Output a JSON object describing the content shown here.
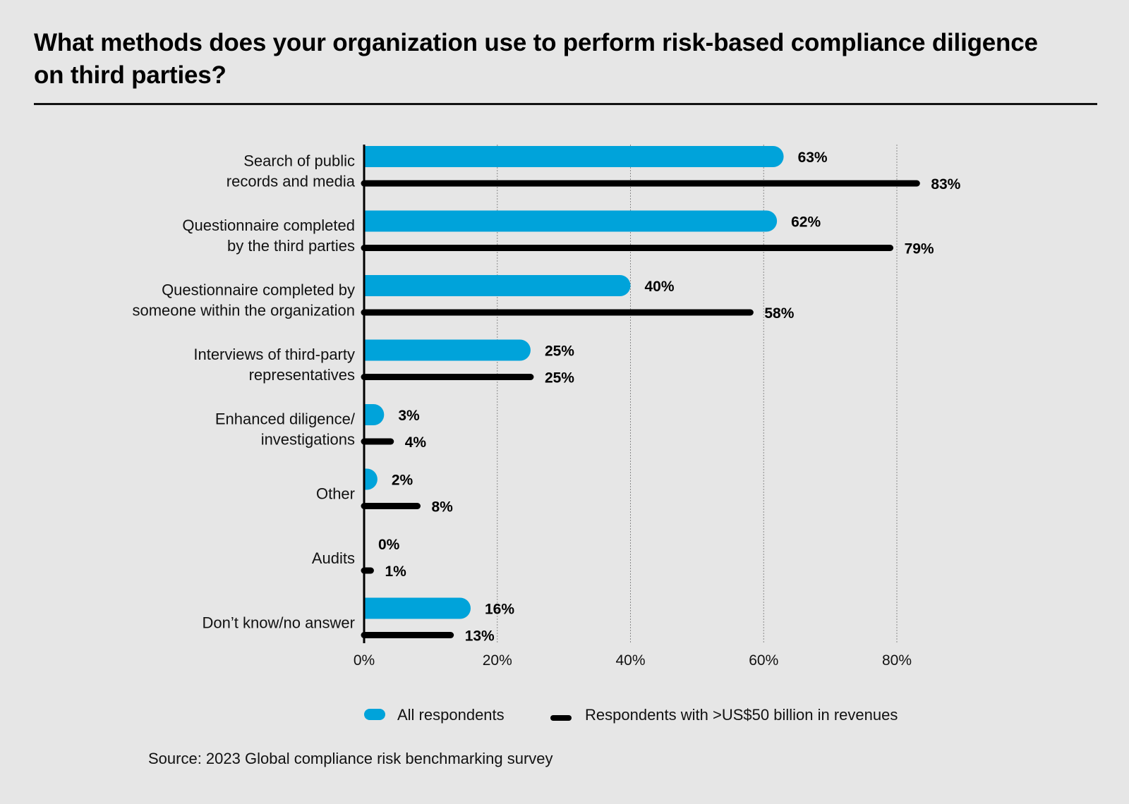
{
  "title": "What methods does your organization use to perform risk-based compliance diligence on third parties?",
  "source": "Source: 2023 Global compliance risk benchmarking survey",
  "colors": {
    "all": "#00a3da",
    "large": "#000000",
    "axis": "#000000",
    "grid": "#8a8a8a"
  },
  "chart_data": {
    "type": "bar",
    "orientation": "horizontal",
    "title": "What methods does your organization use to perform risk-based compliance diligence on third parties?",
    "xlabel": "",
    "ylabel": "",
    "xlim": [
      0,
      80
    ],
    "xticks": [
      0,
      20,
      40,
      60,
      80
    ],
    "xtick_labels": [
      "0%",
      "20%",
      "40%",
      "60%",
      "80%"
    ],
    "grid": "vertical dotted",
    "legend_position": "bottom",
    "categories": [
      [
        "Search of public",
        "records and media"
      ],
      [
        "Questionnaire completed",
        "by the third parties"
      ],
      [
        "Questionnaire completed by",
        "someone within the organization"
      ],
      [
        "Interviews of third-party",
        "representatives"
      ],
      [
        "Enhanced diligence/",
        "investigations"
      ],
      [
        "Other"
      ],
      [
        "Audits"
      ],
      [
        "Don’t know/no answer"
      ]
    ],
    "series": [
      {
        "name": "All respondents",
        "values": [
          63,
          62,
          40,
          25,
          3,
          2,
          0,
          16
        ],
        "labels": [
          "63%",
          "62%",
          "40%",
          "25%",
          "3%",
          "2%",
          "0%",
          "16%"
        ]
      },
      {
        "name": "Respondents with >US$50 billion in revenues",
        "values": [
          83,
          79,
          58,
          25,
          4,
          8,
          1,
          13
        ],
        "labels": [
          "83%",
          "79%",
          "58%",
          "25%",
          "4%",
          "8%",
          "1%",
          "13%"
        ]
      }
    ]
  }
}
